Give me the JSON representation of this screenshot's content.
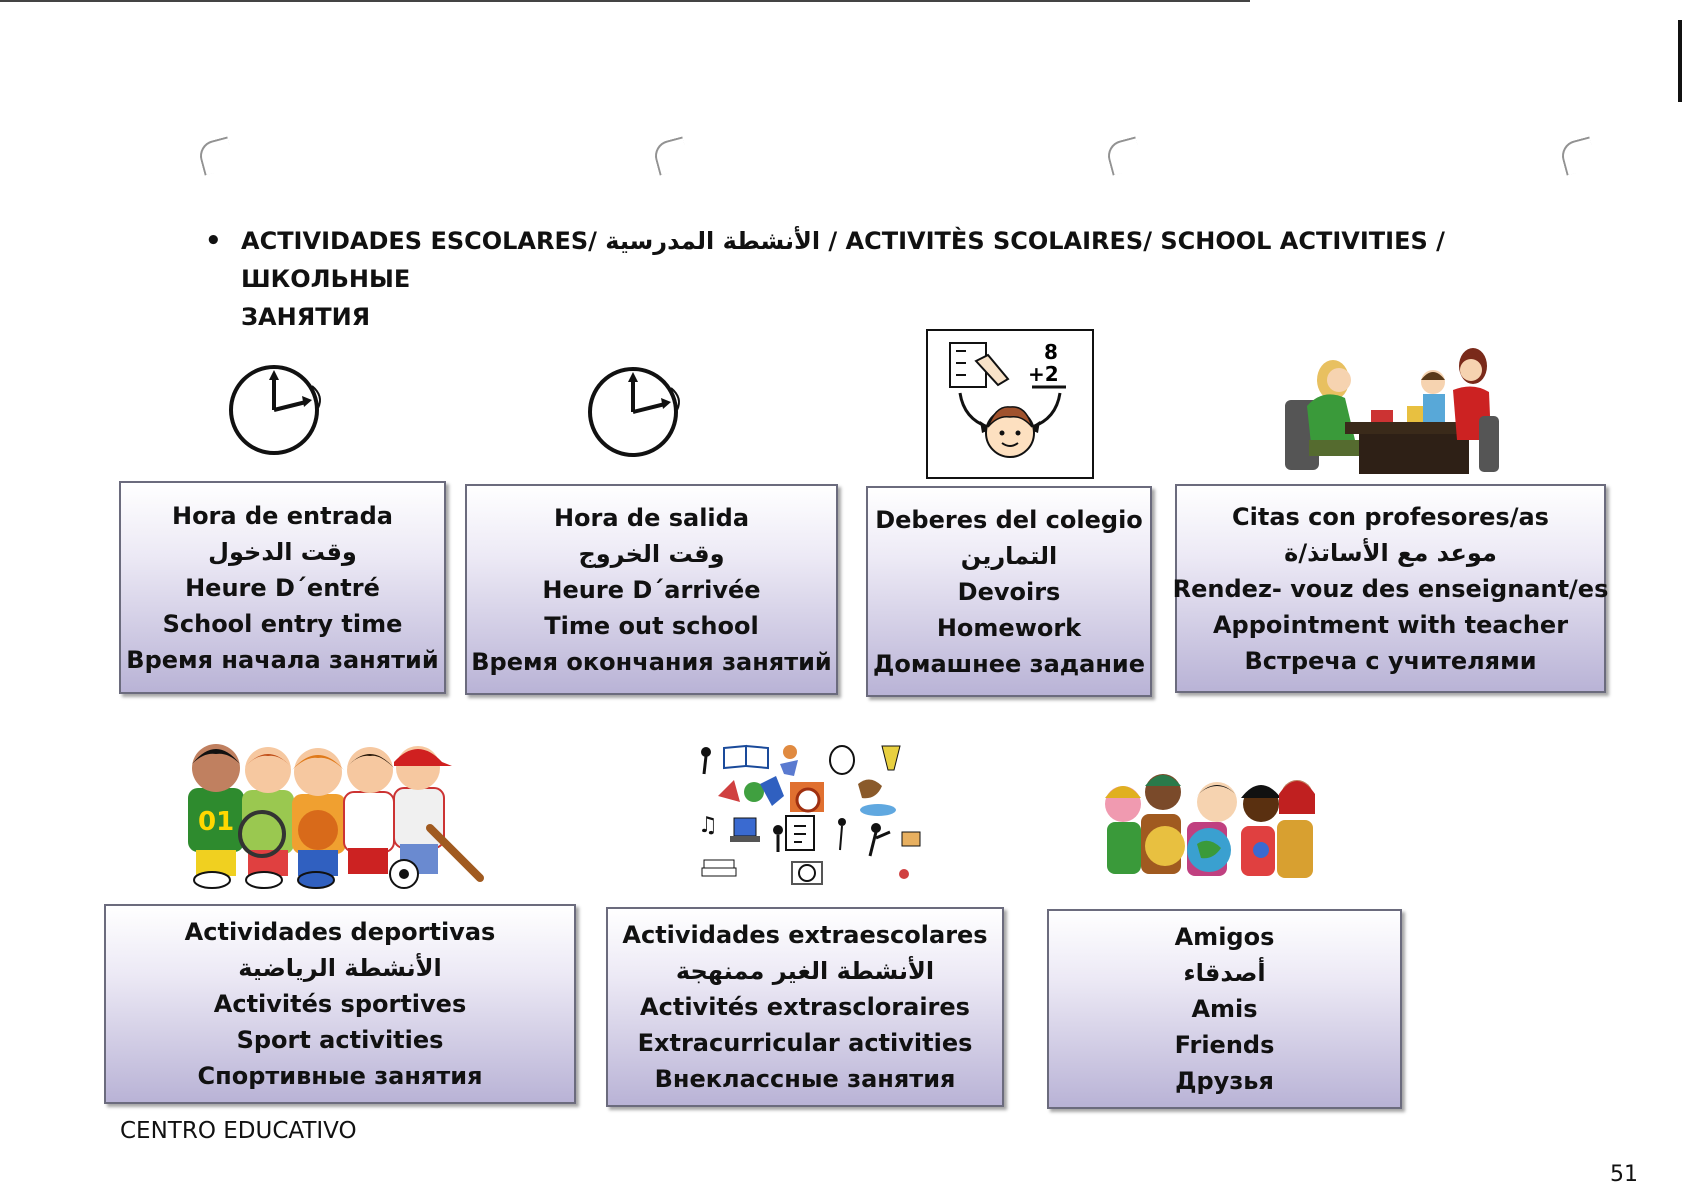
{
  "header": {
    "title_line1": "ACTIVIDADES ESCOLARES/ الأنشطة المدرسية / ACTIVITÈS SCOLAIRES/ SCHOOL ACTIVITIES / ШКОЛЬНЫЕ",
    "title_line2": "ЗАНЯТИЯ"
  },
  "cards": [
    {
      "es": "Hora de entrada",
      "ar": "وقت الدخول",
      "fr": "Heure D´entré",
      "en": "School entry time",
      "ru": "Время начала занятий"
    },
    {
      "es": "Hora de salida",
      "ar": "وقت الخروج",
      "fr": "Heure D´arrivée",
      "en": "Time out school",
      "ru": "Время окончания занятий"
    },
    {
      "es": "Deberes del colegio",
      "ar": "التمارين",
      "fr": "Devoirs",
      "en": "Homework",
      "ru": "Домашнее задание"
    },
    {
      "es": "Citas con profesores/as",
      "ar": "موعد مع الأساتذ/ة",
      "fr": "Rendez- vouz des enseignant/es",
      "en": "Appointment with teacher",
      "ru": "Встреча с учителями"
    },
    {
      "es": "Actividades deportivas",
      "ar": "الأنشطة الرياضية",
      "fr": "Activités sportives",
      "en": "Sport activities",
      "ru": "Спортивные занятия"
    },
    {
      "es": "Actividades extraescolares",
      "ar": "الأنشطة الغير ممنهجة",
      "fr": "Activités extrascloraires",
      "en": "Extracurricular activities",
      "ru": "Внеклассные занятия"
    },
    {
      "es": "Amigos",
      "ar": "أصدقاء",
      "fr": "Amis",
      "en": "Friends",
      "ru": "Друзья"
    }
  ],
  "illustrations": {
    "homework_sum_top": "8",
    "homework_sum_bottom": "+2",
    "jersey_number": "01"
  },
  "footer": {
    "label": "CENTRO EDUCATIVO",
    "page_number": "51"
  }
}
